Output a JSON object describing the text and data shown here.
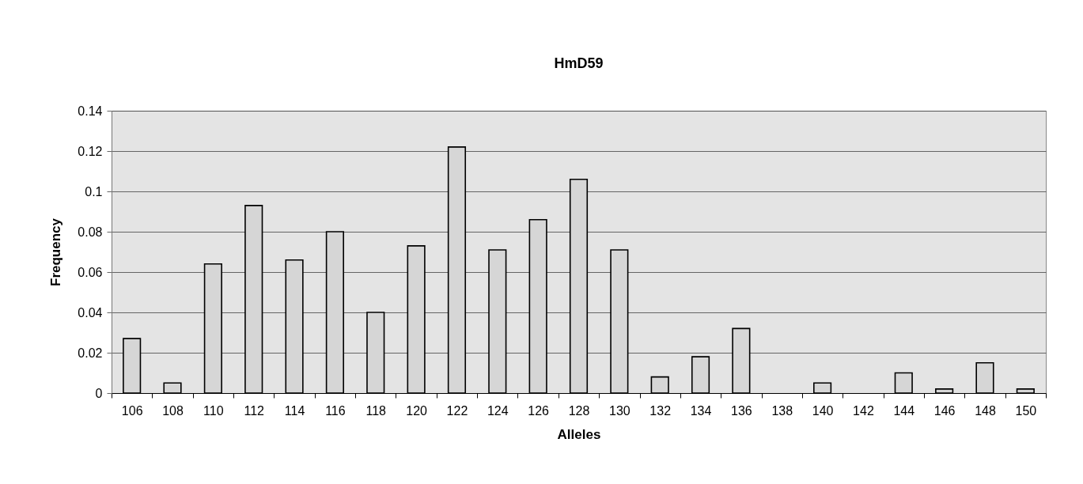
{
  "chart_data": {
    "type": "bar",
    "title": "HmD59",
    "xlabel": "Alleles",
    "ylabel": "Frequency",
    "categories": [
      "106",
      "108",
      "110",
      "112",
      "114",
      "116",
      "118",
      "120",
      "122",
      "124",
      "126",
      "128",
      "130",
      "132",
      "134",
      "136",
      "138",
      "140",
      "142",
      "144",
      "146",
      "148",
      "150"
    ],
    "values": [
      0.027,
      0.005,
      0.064,
      0.093,
      0.066,
      0.08,
      0.04,
      0.073,
      0.122,
      0.071,
      0.086,
      0.106,
      0.071,
      0.008,
      0.018,
      0.032,
      null,
      0.005,
      null,
      0.01,
      0.002,
      0.015,
      0.002
    ],
    "color": "#d6d6d6",
    "ylim": [
      0,
      0.14
    ],
    "yticks": [
      0,
      0.02,
      0.04,
      0.06,
      0.08,
      0.1,
      0.12,
      0.14
    ],
    "grid": "y"
  }
}
